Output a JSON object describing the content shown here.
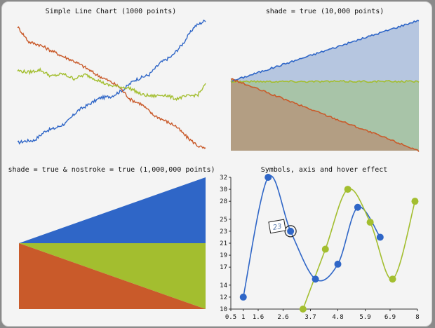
{
  "colors": {
    "blue": "#2f66c7",
    "orange": "#c95a2a",
    "green": "#a3be2f",
    "blue_fill": "#b6c6e0",
    "green_fill": "#a8c4a8",
    "tan_fill": "#b39e83",
    "panel_bg": "#f4f4f4"
  },
  "chart_data": [
    {
      "type": "line",
      "title": "Simple Line Chart (1000 points)",
      "x_points": 1000,
      "series": [
        {
          "color": "blue",
          "keyframes": [
            [
              0,
              10
            ],
            [
              40,
              12
            ],
            [
              90,
              13
            ],
            [
              150,
              25
            ],
            [
              200,
              28
            ],
            [
              260,
              35
            ],
            [
              320,
              50
            ],
            [
              380,
              58
            ],
            [
              440,
              66
            ],
            [
              500,
              68
            ],
            [
              560,
              76
            ],
            [
              620,
              88
            ],
            [
              700,
              95
            ],
            [
              760,
              110
            ],
            [
              820,
              118
            ],
            [
              880,
              134
            ],
            [
              940,
              155
            ],
            [
              1000,
              163
            ]
          ]
        },
        {
          "color": "orange",
          "keyframes": [
            [
              0,
              155
            ],
            [
              60,
              136
            ],
            [
              120,
              132
            ],
            [
              180,
              125
            ],
            [
              240,
              118
            ],
            [
              300,
              112
            ],
            [
              360,
              104
            ],
            [
              420,
              95
            ],
            [
              480,
              88
            ],
            [
              540,
              80
            ],
            [
              600,
              64
            ],
            [
              660,
              58
            ],
            [
              720,
              45
            ],
            [
              780,
              38
            ],
            [
              840,
              31
            ],
            [
              900,
              17
            ],
            [
              960,
              6
            ],
            [
              1000,
              2
            ]
          ]
        },
        {
          "color": "green",
          "keyframes": [
            [
              0,
              100
            ],
            [
              60,
              98
            ],
            [
              120,
              101
            ],
            [
              180,
              93
            ],
            [
              240,
              96
            ],
            [
              300,
              90
            ],
            [
              360,
              95
            ],
            [
              420,
              89
            ],
            [
              480,
              82
            ],
            [
              540,
              80
            ],
            [
              600,
              78
            ],
            [
              660,
              70
            ],
            [
              720,
              68
            ],
            [
              780,
              70
            ],
            [
              840,
              65
            ],
            [
              900,
              68
            ],
            [
              960,
              70
            ],
            [
              1000,
              83
            ]
          ]
        }
      ],
      "ylim": [
        0,
        170
      ]
    },
    {
      "type": "area",
      "title": "shade = true (10,000 points)",
      "x_points": 10000,
      "series": [
        {
          "color": "blue",
          "fill": "blue_fill",
          "start": 52,
          "end": 98
        },
        {
          "color": "green",
          "fill": "green_fill",
          "start": 52,
          "end": 52
        },
        {
          "color": "orange",
          "fill": "tan_fill",
          "start": 54,
          "end": 0
        }
      ],
      "ylim": [
        0,
        100
      ]
    },
    {
      "type": "area",
      "title": "shade = true & nostroke = true (1,000,000 points)",
      "x_points": 1000000,
      "series": [
        {
          "color": "blue",
          "start": 50,
          "end": 100
        },
        {
          "color": "green",
          "start": 50,
          "end": 50
        },
        {
          "color": "orange",
          "start": 50,
          "end": 0
        }
      ],
      "ylim": [
        0,
        100
      ]
    },
    {
      "type": "line",
      "title": "Symbols, axis and hover effect",
      "xlim": [
        0.5,
        8
      ],
      "ylim": [
        10,
        32
      ],
      "xticks": [
        "0.5",
        "1",
        "1.6",
        "2.6",
        "3.7",
        "4.8",
        "5.9",
        "6.9",
        "8"
      ],
      "xtick_values": [
        0.5,
        1,
        1.6,
        2.6,
        3.7,
        4.8,
        5.9,
        6.9,
        8
      ],
      "yticks": [
        "10",
        "12",
        "14",
        "17",
        "19",
        "21",
        "23",
        "25",
        "28",
        "30",
        "32"
      ],
      "ytick_values": [
        10,
        12,
        14,
        17,
        19,
        21,
        23,
        25,
        28,
        30,
        32
      ],
      "series": [
        {
          "color": "blue",
          "x": [
            1,
            2,
            2.9,
            3.9,
            4.8,
            5.6,
            6.5
          ],
          "y": [
            12,
            32,
            23,
            15,
            17.5,
            27,
            22
          ]
        },
        {
          "color": "green",
          "x": [
            3.4,
            4.3,
            5.2,
            6.1,
            7,
            7.9
          ],
          "y": [
            10,
            20,
            30,
            24.5,
            15,
            28
          ]
        }
      ],
      "hover": {
        "series": "blue",
        "label": "23",
        "x": 2.9,
        "y": 23
      }
    }
  ]
}
